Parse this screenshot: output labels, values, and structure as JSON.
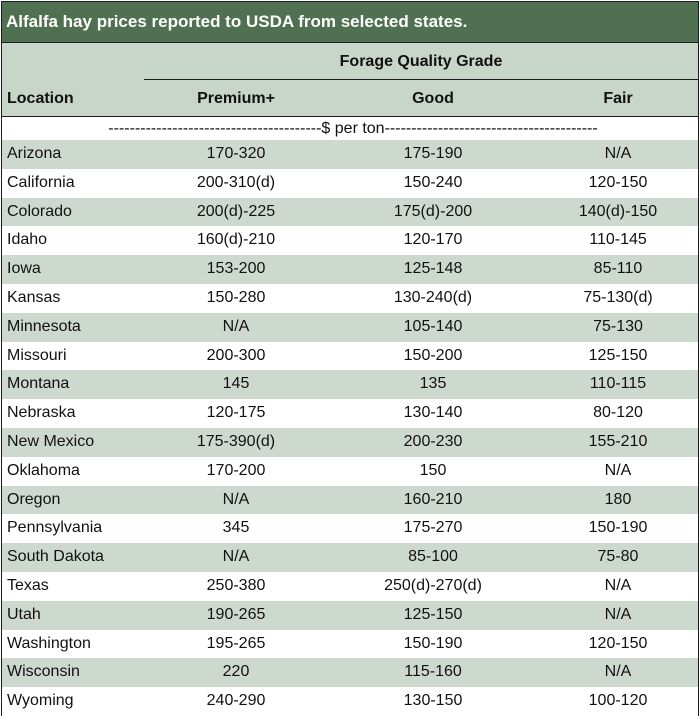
{
  "title": "Alfalfa hay prices reported to USDA from selected states.",
  "group_header": "Forage Quality Grade",
  "columns": {
    "location": "Location",
    "premium": "Premium+",
    "good": "Good",
    "fair": "Fair"
  },
  "units": "----------------------------------------$ per ton----------------------------------------",
  "rows": [
    {
      "location": "Arizona",
      "premium": "170-320",
      "good": "175-190",
      "fair": "N/A"
    },
    {
      "location": "California",
      "premium": "200-310(d)",
      "good": "150-240",
      "fair": "120-150"
    },
    {
      "location": "Colorado",
      "premium": "200(d)-225",
      "good": "175(d)-200",
      "fair": "140(d)-150"
    },
    {
      "location": "Idaho",
      "premium": "160(d)-210",
      "good": "120-170",
      "fair": "110-145"
    },
    {
      "location": "Iowa",
      "premium": "153-200",
      "good": "125-148",
      "fair": "85-110"
    },
    {
      "location": "Kansas",
      "premium": "150-280",
      "good": "130-240(d)",
      "fair": "75-130(d)"
    },
    {
      "location": "Minnesota",
      "premium": "N/A",
      "good": "105-140",
      "fair": "75-130"
    },
    {
      "location": "Missouri",
      "premium": "200-300",
      "good": "150-200",
      "fair": "125-150"
    },
    {
      "location": "Montana",
      "premium": "145",
      "good": "135",
      "fair": "110-115"
    },
    {
      "location": "Nebraska",
      "premium": "120-175",
      "good": "130-140",
      "fair": "80-120"
    },
    {
      "location": "New Mexico",
      "premium": "175-390(d)",
      "good": "200-230",
      "fair": "155-210"
    },
    {
      "location": "Oklahoma",
      "premium": "170-200",
      "good": "150",
      "fair": "N/A"
    },
    {
      "location": "Oregon",
      "premium": "N/A",
      "good": "160-210",
      "fair": "180"
    },
    {
      "location": "Pennsylvania",
      "premium": "345",
      "good": "175-270",
      "fair": "150-190"
    },
    {
      "location": "South Dakota",
      "premium": "N/A",
      "good": "85-100",
      "fair": "75-80"
    },
    {
      "location": "Texas",
      "premium": "250-380",
      "good": "250(d)-270(d)",
      "fair": "N/A"
    },
    {
      "location": "Utah",
      "premium": "190-265",
      "good": "125-150",
      "fair": "N/A"
    },
    {
      "location": "Washington",
      "premium": "195-265",
      "good": "150-190",
      "fair": "120-150"
    },
    {
      "location": "Wisconsin",
      "premium": "220",
      "good": "115-160",
      "fair": "N/A"
    },
    {
      "location": "Wyoming",
      "premium": "240-290",
      "good": "130-150",
      "fair": "100-120"
    }
  ],
  "colors": {
    "title_bar": "#4f7151",
    "header_band": "#c8d5c9",
    "row_shade": "#cdd9cf",
    "border": "#1d1d1d"
  }
}
